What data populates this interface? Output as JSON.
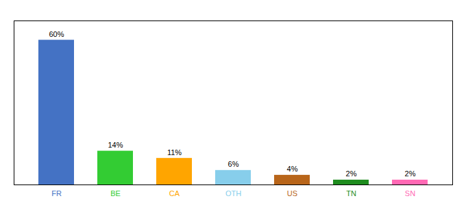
{
  "chart_data": {
    "type": "bar",
    "categories": [
      "FR",
      "BE",
      "CA",
      "OTH",
      "US",
      "TN",
      "SN"
    ],
    "values": [
      60,
      14,
      11,
      6,
      4,
      2,
      2
    ],
    "value_labels": [
      "60%",
      "14%",
      "11%",
      "6%",
      "4%",
      "2%",
      "2%"
    ],
    "colors": [
      "#4472C4",
      "#33CC33",
      "#FFA500",
      "#87CEEB",
      "#B8651A",
      "#1E8C1E",
      "#FF69B4"
    ],
    "ylim": [
      0,
      68
    ],
    "data_labels": true,
    "tick_labels": "x",
    "grid": false
  }
}
